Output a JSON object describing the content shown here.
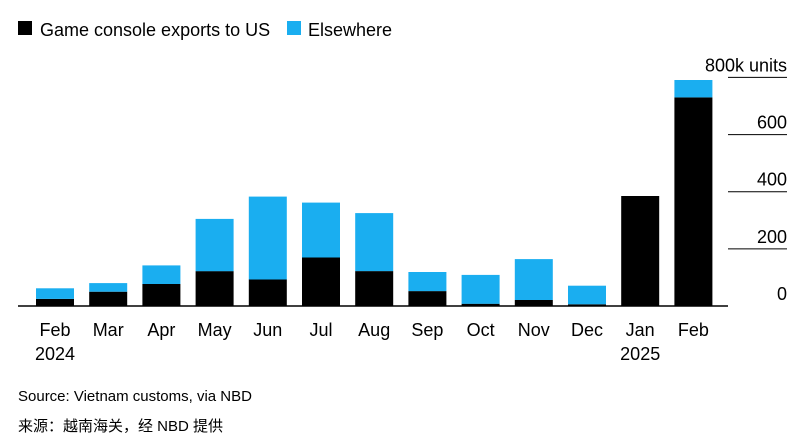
{
  "chart_data": {
    "type": "bar",
    "stacked": true,
    "categories": [
      "Feb",
      "Mar",
      "Apr",
      "May",
      "Jun",
      "Jul",
      "Aug",
      "Sep",
      "Oct",
      "Nov",
      "Dec",
      "Jan",
      "Feb"
    ],
    "year_labels": [
      {
        "category_index": 0,
        "label": "2024"
      },
      {
        "category_index": 11,
        "label": "2025"
      }
    ],
    "series": [
      {
        "name": "Game console exports to US",
        "color": "#000000",
        "values": [
          25,
          50,
          77,
          122,
          93,
          170,
          122,
          52,
          8,
          21,
          6,
          385,
          730
        ]
      },
      {
        "name": "Elsewhere",
        "color": "#1aaef0",
        "values": [
          37,
          30,
          65,
          183,
          290,
          192,
          203,
          67,
          101,
          143,
          65,
          0,
          61
        ]
      }
    ],
    "y_axis": {
      "ticks": [
        0,
        200,
        400,
        600,
        800
      ],
      "tick_labels": [
        "0",
        "200",
        "400",
        "600",
        "800k units"
      ],
      "ylim": [
        0,
        880
      ],
      "side": "right"
    },
    "legend_position": "top-left"
  },
  "source": {
    "line1": "Source: Vietnam customs, via NBD",
    "line2": "来源：越南海关，经 NBD 提供"
  }
}
